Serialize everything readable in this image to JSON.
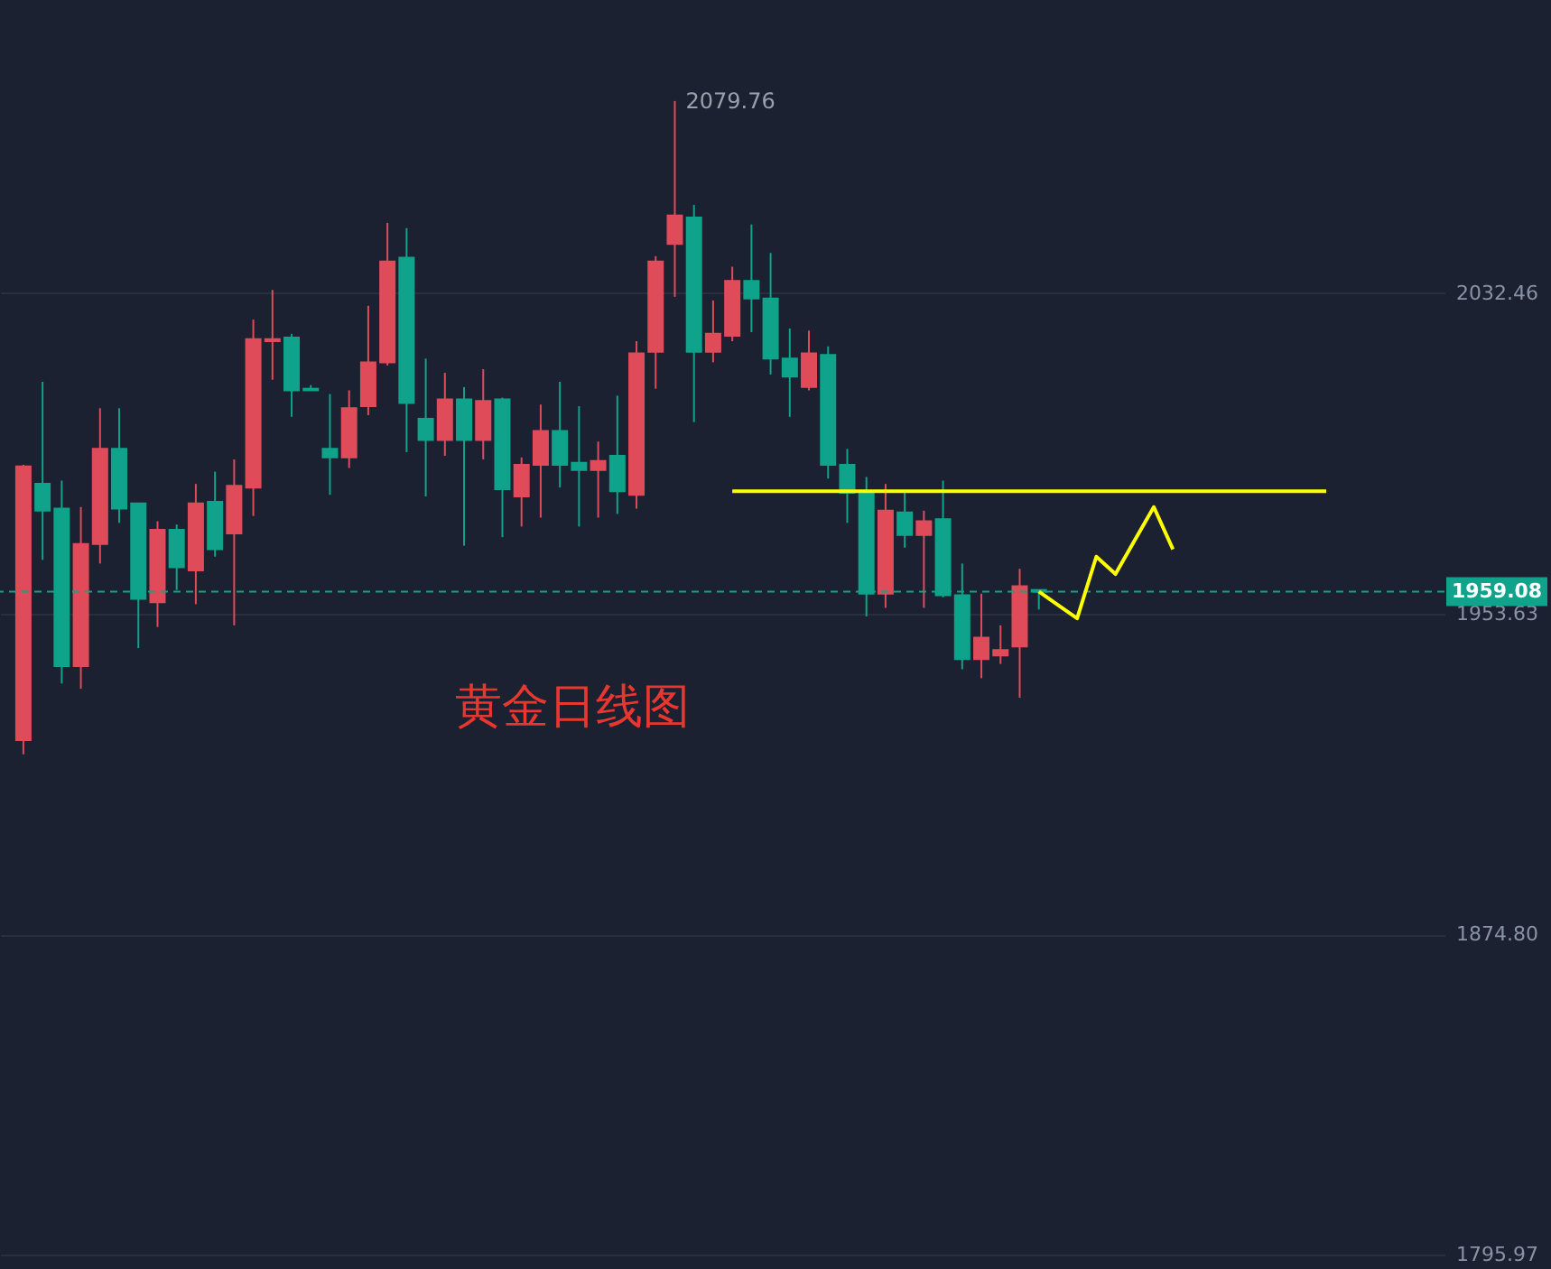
{
  "chart_data": {
    "type": "candlestick",
    "categories": [
      null,
      null,
      null,
      null,
      null,
      null,
      null,
      null,
      null,
      null,
      null,
      null,
      null,
      null,
      null,
      null,
      null,
      null,
      null,
      null,
      null,
      null,
      null,
      null,
      null,
      null,
      null,
      null,
      null,
      null,
      null,
      null,
      null,
      null,
      null,
      null,
      null,
      null,
      null,
      null,
      null,
      null,
      null,
      null,
      null,
      null,
      null,
      null,
      null,
      null,
      null,
      null,
      null,
      null,
      null,
      null,
      null,
      null,
      null,
      null,
      null,
      null,
      null,
      null,
      null,
      null,
      null,
      null,
      null,
      null,
      null,
      null,
      null,
      null
    ],
    "ohlc": [
      [
        1922.6,
        1990.3,
        1919.1,
        1989.9
      ],
      [
        1985.6,
        2010.7,
        1966.9,
        1979.0
      ],
      [
        1979.5,
        1986.4,
        1936.5,
        1940.8
      ],
      [
        1940.8,
        1979.9,
        1935.2,
        1970.8
      ],
      [
        1970.8,
        2004.2,
        1966.0,
        1994.2
      ],
      [
        1994.2,
        2004.2,
        1976.0,
        1979.5
      ],
      [
        1980.8,
        1980.8,
        1945.2,
        1957.3
      ],
      [
        1956.5,
        1976.4,
        1950.4,
        1974.3
      ],
      [
        1974.3,
        1975.6,
        1959.5,
        1965.1
      ],
      [
        1964.3,
        1985.6,
        1956.0,
        1980.8
      ],
      [
        1981.2,
        1988.6,
        1967.7,
        1969.5
      ],
      [
        1973.4,
        1991.6,
        1950.8,
        1985.1
      ],
      [
        1984.7,
        2026.0,
        1977.7,
        2021.2
      ],
      [
        2020.7,
        2033.3,
        2011.2,
        2021.2
      ],
      [
        2021.6,
        2022.5,
        2002.1,
        2008.6
      ],
      [
        2009.0,
        2009.9,
        2008.6,
        2008.6
      ],
      [
        1994.2,
        2007.7,
        1982.9,
        1992.1
      ],
      [
        1992.1,
        2008.6,
        1989.5,
        2004.2
      ],
      [
        2004.7,
        2029.4,
        2002.5,
        2015.5
      ],
      [
        2015.5,
        2049.8,
        2014.7,
        2040.3
      ],
      [
        2041.2,
        2048.5,
        1993.4,
        2005.5
      ],
      [
        2001.6,
        2016.4,
        1982.5,
        1996.4
      ],
      [
        1996.4,
        2012.9,
        1992.5,
        2006.4
      ],
      [
        2006.4,
        2009.4,
        1970.4,
        1996.4
      ],
      [
        1996.4,
        2013.8,
        1991.6,
        2006.0
      ],
      [
        2006.4,
        2006.8,
        1972.5,
        1984.3
      ],
      [
        1982.5,
        1992.1,
        1975.1,
        1990.3
      ],
      [
        1990.3,
        2005.1,
        1977.3,
        1998.6
      ],
      [
        1998.6,
        2010.7,
        1984.7,
        1990.3
      ],
      [
        1990.8,
        2004.7,
        1975.1,
        1989.0
      ],
      [
        1989.0,
        1996.0,
        1977.3,
        1991.2
      ],
      [
        1992.5,
        2007.3,
        1978.2,
        1983.8
      ],
      [
        1982.9,
        2020.7,
        1979.5,
        2017.7
      ],
      [
        2018.1,
        2041.6,
        2009.0,
        2040.3
      ],
      [
        2044.6,
        2079.76,
        2031.6,
        2051.6
      ],
      [
        2051.1,
        2054.2,
        2000.8,
        2018.1
      ],
      [
        2018.1,
        2030.7,
        2015.5,
        2022.5
      ],
      [
        2022.0,
        2039.0,
        2020.7,
        2035.5
      ],
      [
        2035.5,
        2049.4,
        2022.9,
        2031.2
      ],
      [
        2031.2,
        2042.4,
        2012.5,
        2016.4
      ],
      [
        2016.4,
        2023.8,
        2002.1,
        2012.0
      ],
      [
        2009.4,
        2023.3,
        2008.6,
        2017.7
      ],
      [
        2017.3,
        2019.4,
        1986.9,
        1990.3
      ],
      [
        1990.3,
        1994.2,
        1976.0,
        1983.4
      ],
      [
        1983.4,
        1987.3,
        1953.0,
        1958.6
      ],
      [
        1958.6,
        1985.6,
        1955.1,
        1979.0
      ],
      [
        1978.6,
        1983.4,
        1969.9,
        1973.0
      ],
      [
        1973.0,
        1979.0,
        1955.1,
        1976.4
      ],
      [
        1976.9,
        1986.4,
        1957.7,
        1958.2
      ],
      [
        1958.2,
        1966.0,
        1940.0,
        1942.5
      ],
      [
        1942.5,
        1958.6,
        1937.8,
        1947.8
      ],
      [
        1943.4,
        1950.8,
        1941.3,
        1944.7
      ],
      [
        1945.6,
        1964.7,
        1933.0,
        1960.4
      ],
      [
        1959.5,
        1959.5,
        1954.7,
        1959.08
      ],
      null,
      null,
      null,
      null,
      null,
      null,
      null,
      null,
      null,
      null,
      null,
      null,
      null,
      null,
      null,
      null,
      null,
      null,
      null,
      null
    ],
    "colors": [
      "#e04b5a",
      "#0ea38a",
      "#0ea38a",
      "#e04b5a",
      "#e04b5a",
      "#0ea38a",
      "#0ea38a",
      "#e04b5a",
      "#0ea38a",
      "#e04b5a",
      "#0ea38a",
      "#e04b5a",
      "#e04b5a",
      "#e04b5a",
      "#0ea38a",
      "#0ea38a",
      "#0ea38a",
      "#e04b5a",
      "#e04b5a",
      "#e04b5a",
      "#0ea38a",
      "#0ea38a",
      "#e04b5a",
      "#0ea38a",
      "#e04b5a",
      "#0ea38a",
      "#e04b5a",
      "#e04b5a",
      "#0ea38a",
      "#0ea38a",
      "#e04b5a",
      "#0ea38a",
      "#e04b5a",
      "#e04b5a",
      "#e04b5a",
      "#0ea38a",
      "#e04b5a",
      "#e04b5a",
      "#0ea38a",
      "#0ea38a",
      "#0ea38a",
      "#e04b5a",
      "#0ea38a",
      "#0ea38a",
      "#0ea38a",
      "#e04b5a",
      "#0ea38a",
      "#e04b5a",
      "#0ea38a",
      "#0ea38a",
      "#e04b5a",
      "#e04b5a",
      "#e04b5a",
      "#0ea38a",
      null,
      null,
      null,
      null,
      null,
      null,
      null,
      null,
      null,
      null,
      null,
      null,
      null,
      null,
      null,
      null,
      null,
      null,
      null,
      null
    ],
    "series": [
      {
        "type": "line",
        "color": "#ffff00",
        "values": [
          null,
          null,
          null,
          null,
          null,
          null,
          null,
          null,
          null,
          null,
          null,
          null,
          null,
          null,
          null,
          null,
          null,
          null,
          null,
          null,
          null,
          null,
          null,
          null,
          null,
          null,
          null,
          null,
          null,
          null,
          null,
          null,
          null,
          null,
          null,
          null,
          null,
          1983.8,
          1983.8,
          1983.8,
          1983.8,
          1983.8,
          1983.8,
          1983.8,
          1983.8,
          1983.8,
          1983.8,
          1983.8,
          1983.8,
          1983.8,
          1983.8,
          1983.8,
          1983.8,
          1983.8,
          1983.8,
          1983.8,
          1983.8,
          1983.8,
          1983.8,
          1983.8,
          1983.8,
          1983.8,
          1983.8,
          1983.8,
          1983.8,
          1983.8,
          1983.8,
          1983.8,
          1983.8,
          null,
          null,
          null,
          null,
          null
        ]
      },
      {
        "type": "line",
        "color": "#ffff00",
        "values": [
          null,
          null,
          null,
          null,
          null,
          null,
          null,
          null,
          null,
          null,
          null,
          null,
          null,
          null,
          null,
          null,
          null,
          null,
          null,
          null,
          null,
          null,
          null,
          null,
          null,
          null,
          null,
          null,
          null,
          null,
          null,
          null,
          null,
          null,
          null,
          null,
          null,
          null,
          null,
          null,
          null,
          null,
          null,
          null,
          null,
          null,
          null,
          null,
          null,
          null,
          null,
          null,
          null,
          1959.1,
          1955.8,
          1952.5,
          1967.7,
          1963.4,
          1971.7,
          1979.9,
          1969.5,
          null,
          null,
          null,
          null,
          null,
          null,
          null,
          null,
          null,
          null,
          null,
          null,
          null
        ]
      }
    ],
    "ylim": [
      1792.5,
      2104.6
    ],
    "yticks": [
      2032.46,
      1953.63,
      {
        "value": 1874.8,
        "label": "1874.80"
      },
      1795.97
    ],
    "ref_lines": [
      {
        "axis": "y",
        "value": 1959.08,
        "label": "1959.08",
        "color": "#0ea38a",
        "line_style": "dashed"
      }
    ],
    "annotations": [
      "2079.76",
      "黄金日线图"
    ],
    "grid": "y",
    "tick_labels": "y"
  }
}
